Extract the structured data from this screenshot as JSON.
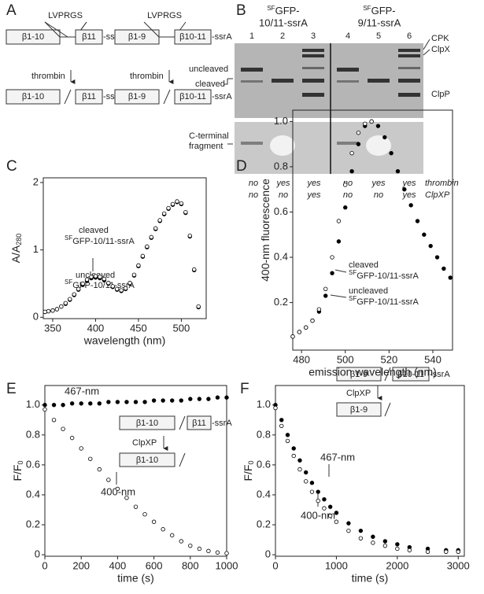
{
  "panel_a": {
    "label": "A",
    "constructs": [
      {
        "left": "β1-10",
        "right": "β11",
        "tag": "-ssrA",
        "linker": "LVPRGS"
      },
      {
        "left": "β1-9",
        "right": "β10-11",
        "tag": "-ssrA",
        "linker": "LVPRGS"
      }
    ],
    "arrow_labels": [
      "thrombin",
      "thrombin"
    ]
  },
  "panel_b": {
    "label": "B",
    "groups": [
      {
        "sup": "SF",
        "line1": "GFP-",
        "line2": "10/11-ssrA"
      },
      {
        "sup": "SF",
        "line1": "GFP-",
        "line2": "9/11-ssrA"
      }
    ],
    "lanes": [
      1,
      2,
      3,
      4,
      5,
      6
    ],
    "band_labels_right": [
      "CPK",
      "ClpX",
      "ClpP"
    ],
    "band_labels_left": [
      "uncleaved",
      "cleaved"
    ],
    "fragment_label": [
      "C-terminal",
      "fragment"
    ],
    "rows": [
      {
        "label": "thrombin",
        "cells": [
          "no",
          "yes",
          "yes",
          "no",
          "yes",
          "yes"
        ]
      },
      {
        "label": "ClpXP",
        "cells": [
          "no",
          "no",
          "yes",
          "no",
          "no",
          "yes"
        ]
      }
    ]
  },
  "chart_data": [
    {
      "type": "scatter",
      "panel": "C",
      "xlabel": "wavelength (nm)",
      "ylabel": "A/A",
      "ylabel_sub": "280",
      "xlim": [
        339,
        529
      ],
      "ylim": [
        -0.02,
        2.07
      ],
      "xticks": [
        350,
        400,
        450,
        500
      ],
      "yticks": [
        0,
        1,
        2
      ],
      "annotations": [
        "cleaved",
        "SF",
        "GFP-10/11-ssrA",
        "uncleaved"
      ],
      "series": [
        {
          "marker": "filled",
          "color": "#000000",
          "x": [
            341,
            345,
            350,
            355,
            360,
            365,
            370,
            375,
            380,
            385,
            390,
            395,
            400,
            405,
            410,
            415,
            420,
            425,
            430,
            435,
            440,
            445,
            450,
            455,
            460,
            465,
            470,
            475,
            480,
            485,
            490,
            495,
            500,
            505,
            510,
            515,
            520
          ],
          "values": [
            0.08,
            0.09,
            0.1,
            0.12,
            0.16,
            0.2,
            0.26,
            0.33,
            0.41,
            0.48,
            0.54,
            0.58,
            0.59,
            0.58,
            0.55,
            0.5,
            0.45,
            0.41,
            0.39,
            0.42,
            0.5,
            0.62,
            0.76,
            0.9,
            1.04,
            1.18,
            1.31,
            1.43,
            1.53,
            1.61,
            1.67,
            1.71,
            1.68,
            1.55,
            1.2,
            0.7,
            0.15
          ]
        },
        {
          "marker": "open",
          "color": "#000000",
          "x": [
            341,
            345,
            350,
            355,
            360,
            365,
            370,
            375,
            380,
            385,
            390,
            395,
            400,
            405,
            410,
            415,
            420,
            425,
            430,
            435,
            440,
            445,
            450,
            455,
            460,
            465,
            470,
            475,
            480,
            485,
            490,
            495,
            500,
            505,
            510,
            515,
            520
          ],
          "values": [
            0.08,
            0.09,
            0.1,
            0.12,
            0.16,
            0.21,
            0.27,
            0.34,
            0.42,
            0.5,
            0.56,
            0.6,
            0.61,
            0.6,
            0.57,
            0.51,
            0.46,
            0.42,
            0.4,
            0.43,
            0.51,
            0.63,
            0.77,
            0.91,
            1.05,
            1.19,
            1.32,
            1.44,
            1.54,
            1.62,
            1.68,
            1.72,
            1.69,
            1.56,
            1.21,
            0.71,
            0.16
          ]
        }
      ]
    },
    {
      "type": "scatter",
      "panel": "D",
      "xlabel": "emission wavelength (nm)",
      "ylabel": "400-nm fluorescence",
      "xlim": [
        476,
        549
      ],
      "ylim": [
        -0.01,
        1.05
      ],
      "xticks": [
        480,
        500,
        520,
        540
      ],
      "yticks": [
        0.2,
        0.4,
        0.6,
        0.8,
        {
          "value": 1.0,
          "label": "1.0"
        }
      ],
      "annotations": [
        "cleaved",
        "SF",
        "GFP-10/11-ssrA",
        "uncleaved"
      ],
      "series": [
        {
          "marker": "filled",
          "color": "#000000",
          "x": [
            476,
            479,
            482,
            485,
            488,
            491,
            494,
            497,
            500,
            503,
            506,
            509,
            512,
            515,
            518,
            521,
            524,
            527,
            530,
            533,
            536,
            539,
            542,
            545,
            548
          ],
          "values": [
            0.05,
            0.07,
            0.09,
            0.12,
            0.16,
            0.23,
            0.33,
            0.47,
            0.62,
            0.78,
            0.9,
            0.98,
            1.0,
            0.98,
            0.93,
            0.86,
            0.78,
            0.7,
            0.63,
            0.56,
            0.5,
            0.45,
            0.4,
            0.35,
            0.31
          ]
        },
        {
          "marker": "open",
          "color": "#000000",
          "x": [
            476,
            479,
            482,
            485,
            488,
            491,
            494,
            497,
            500,
            503,
            506,
            509,
            512
          ],
          "values": [
            0.05,
            0.07,
            0.09,
            0.12,
            0.17,
            0.26,
            0.4,
            0.56,
            0.72,
            0.86,
            0.95,
            0.99,
            1.0
          ]
        }
      ]
    },
    {
      "type": "scatter",
      "panel": "E",
      "xlabel": "time (s)",
      "ylabel": "F/F",
      "ylabel_sub": "0",
      "xlim": [
        0,
        1000
      ],
      "ylim": [
        -0.01,
        1.13
      ],
      "xticks": [
        0,
        200,
        400,
        600,
        800,
        1000
      ],
      "yticks": [
        0,
        0.2,
        0.4,
        0.6,
        0.8,
        {
          "value": 1.0,
          "label": "1.0"
        }
      ],
      "annotations": [
        "467-nm",
        "400-nm"
      ],
      "inset": [
        "β1-10",
        "β11",
        "-ssrA",
        "ClpXP"
      ],
      "series": [
        {
          "marker": "filled",
          "color": "#000000",
          "x": [
            0,
            50,
            100,
            150,
            200,
            250,
            300,
            350,
            400,
            450,
            500,
            550,
            600,
            650,
            700,
            750,
            800,
            850,
            900,
            950,
            1000
          ],
          "values": [
            1.0,
            1.0,
            1.0,
            1.01,
            1.01,
            1.01,
            1.01,
            1.02,
            1.02,
            1.02,
            1.02,
            1.02,
            1.03,
            1.03,
            1.03,
            1.03,
            1.04,
            1.04,
            1.04,
            1.05,
            1.05
          ]
        },
        {
          "marker": "open",
          "color": "#000000",
          "x": [
            0,
            50,
            100,
            150,
            200,
            250,
            300,
            350,
            400,
            450,
            500,
            550,
            600,
            650,
            700,
            750,
            800,
            850,
            900,
            950,
            1000
          ],
          "values": [
            0.97,
            0.9,
            0.84,
            0.78,
            0.71,
            0.64,
            0.57,
            0.5,
            0.44,
            0.38,
            0.32,
            0.27,
            0.22,
            0.17,
            0.13,
            0.09,
            0.06,
            0.04,
            0.025,
            0.015,
            0.01
          ]
        }
      ]
    },
    {
      "type": "scatter",
      "panel": "F",
      "xlabel": "time (s)",
      "ylabel": "F/F",
      "ylabel_sub": "0",
      "xlim": [
        0,
        3100
      ],
      "ylim": [
        -0.01,
        1.13
      ],
      "xticks": [
        0,
        1000,
        2000,
        3000
      ],
      "yticks": [
        0,
        0.2,
        0.4,
        0.6,
        0.8,
        {
          "value": 1.0,
          "label": "1.0"
        }
      ],
      "annotations": [
        "467-nm",
        "400-nm"
      ],
      "inset": [
        "β1-9",
        "β10-11",
        "-ssrA",
        "ClpXP"
      ],
      "series": [
        {
          "marker": "filled",
          "color": "#000000",
          "x": [
            0,
            100,
            200,
            300,
            400,
            500,
            600,
            700,
            800,
            900,
            1000,
            1200,
            1400,
            1600,
            1800,
            2000,
            2200,
            2500,
            2800,
            3000
          ],
          "values": [
            1.0,
            0.9,
            0.8,
            0.71,
            0.63,
            0.55,
            0.48,
            0.42,
            0.37,
            0.32,
            0.28,
            0.21,
            0.16,
            0.12,
            0.09,
            0.07,
            0.05,
            0.04,
            0.03,
            0.03
          ]
        },
        {
          "marker": "open",
          "color": "#000000",
          "x": [
            0,
            100,
            200,
            300,
            400,
            500,
            600,
            700,
            800,
            900,
            1000,
            1200,
            1400,
            1600,
            1800,
            2000,
            2200,
            2500,
            2800,
            3000
          ],
          "values": [
            0.98,
            0.86,
            0.76,
            0.66,
            0.57,
            0.49,
            0.42,
            0.36,
            0.31,
            0.26,
            0.22,
            0.16,
            0.11,
            0.08,
            0.06,
            0.04,
            0.03,
            0.02,
            0.02,
            0.02
          ]
        }
      ]
    }
  ]
}
